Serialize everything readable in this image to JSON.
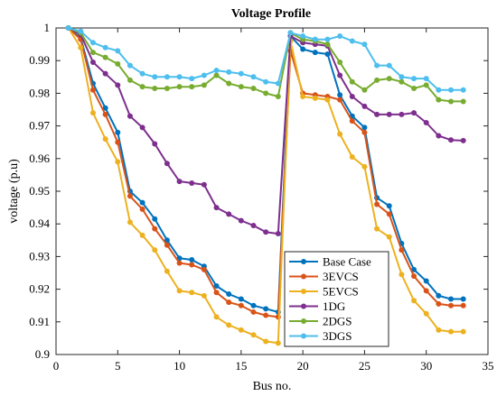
{
  "chart_data": {
    "type": "line",
    "title": "Voltage Profile",
    "xlabel": "Bus no.",
    "ylabel": "voltage (p.u)",
    "xlim": [
      0,
      35
    ],
    "ylim": [
      0.9,
      1.0
    ],
    "xticks": [
      0,
      5,
      10,
      15,
      20,
      25,
      30,
      35
    ],
    "xtick_labels": [
      "0",
      "5",
      "10",
      "15",
      "20",
      "25",
      "30",
      "35"
    ],
    "yticks": [
      0.9,
      0.91,
      0.92,
      0.93,
      0.94,
      0.95,
      0.96,
      0.97,
      0.98,
      0.99,
      1.0
    ],
    "ytick_labels": [
      "0.9",
      "0.91",
      "0.92",
      "0.93",
      "0.94",
      "0.95",
      "0.96",
      "0.97",
      "0.98",
      "0.99",
      "1"
    ],
    "grid": false,
    "legend_position": "bottom-right",
    "x": [
      1,
      2,
      3,
      4,
      5,
      6,
      7,
      8,
      9,
      10,
      11,
      12,
      13,
      14,
      15,
      16,
      17,
      18,
      19,
      20,
      21,
      22,
      23,
      24,
      25,
      26,
      27,
      28,
      29,
      30,
      31,
      32,
      33
    ],
    "series": [
      {
        "name": "Base Case",
        "color": "#0072BD",
        "values": [
          1.0,
          0.997,
          0.983,
          0.9755,
          0.968,
          0.95,
          0.9465,
          0.9415,
          0.935,
          0.9295,
          0.929,
          0.927,
          0.921,
          0.9185,
          0.917,
          0.915,
          0.914,
          0.913,
          0.9975,
          0.9935,
          0.9925,
          0.992,
          0.9795,
          0.973,
          0.9695,
          0.948,
          0.9455,
          0.934,
          0.926,
          0.9225,
          0.918,
          0.917,
          0.917
        ]
      },
      {
        "name": "3EVCS",
        "color": "#D95319",
        "values": [
          1.0,
          0.9965,
          0.981,
          0.9735,
          0.965,
          0.9485,
          0.9445,
          0.9385,
          0.9335,
          0.928,
          0.9275,
          0.926,
          0.919,
          0.916,
          0.915,
          0.913,
          0.912,
          0.9115,
          0.993,
          0.98,
          0.9795,
          0.979,
          0.978,
          0.9715,
          0.968,
          0.946,
          0.943,
          0.932,
          0.924,
          0.9195,
          0.9155,
          0.915,
          0.915
        ]
      },
      {
        "name": "5EVCS",
        "color": "#EDB120",
        "values": [
          1.0,
          0.994,
          0.974,
          0.966,
          0.959,
          0.9405,
          0.9365,
          0.932,
          0.9255,
          0.9195,
          0.919,
          0.918,
          0.9115,
          0.909,
          0.9075,
          0.906,
          0.904,
          0.9035,
          0.996,
          0.979,
          0.9785,
          0.978,
          0.9675,
          0.9605,
          0.9575,
          0.9385,
          0.936,
          0.9245,
          0.9165,
          0.9125,
          0.9075,
          0.907,
          0.907
        ]
      },
      {
        "name": "1DG",
        "color": "#7E2F8E",
        "values": [
          1.0,
          0.998,
          0.9895,
          0.986,
          0.9825,
          0.973,
          0.9695,
          0.9645,
          0.9585,
          0.953,
          0.9525,
          0.952,
          0.945,
          0.943,
          0.941,
          0.9395,
          0.9375,
          0.937,
          0.9975,
          0.9955,
          0.995,
          0.9945,
          0.9855,
          0.979,
          0.976,
          0.9735,
          0.9735,
          0.9735,
          0.974,
          0.971,
          0.967,
          0.9657,
          0.9655
        ]
      },
      {
        "name": "2DGS",
        "color": "#77AC30",
        "values": [
          1.0,
          0.9985,
          0.9925,
          0.991,
          0.989,
          0.984,
          0.982,
          0.9815,
          0.9815,
          0.982,
          0.982,
          0.9825,
          0.9855,
          0.983,
          0.982,
          0.9815,
          0.98,
          0.979,
          0.9985,
          0.9965,
          0.996,
          0.995,
          0.9895,
          0.9835,
          0.981,
          0.984,
          0.9845,
          0.9835,
          0.9815,
          0.9825,
          0.978,
          0.9775,
          0.9775
        ]
      },
      {
        "name": "3DGS",
        "color": "#4DBEEE",
        "values": [
          1.0,
          0.999,
          0.9955,
          0.994,
          0.993,
          0.9885,
          0.986,
          0.985,
          0.985,
          0.985,
          0.9845,
          0.9855,
          0.987,
          0.9865,
          0.986,
          0.985,
          0.9835,
          0.983,
          0.9985,
          0.9975,
          0.9965,
          0.9965,
          0.9975,
          0.996,
          0.995,
          0.9885,
          0.9885,
          0.985,
          0.9845,
          0.9845,
          0.981,
          0.981,
          0.981
        ]
      }
    ]
  }
}
